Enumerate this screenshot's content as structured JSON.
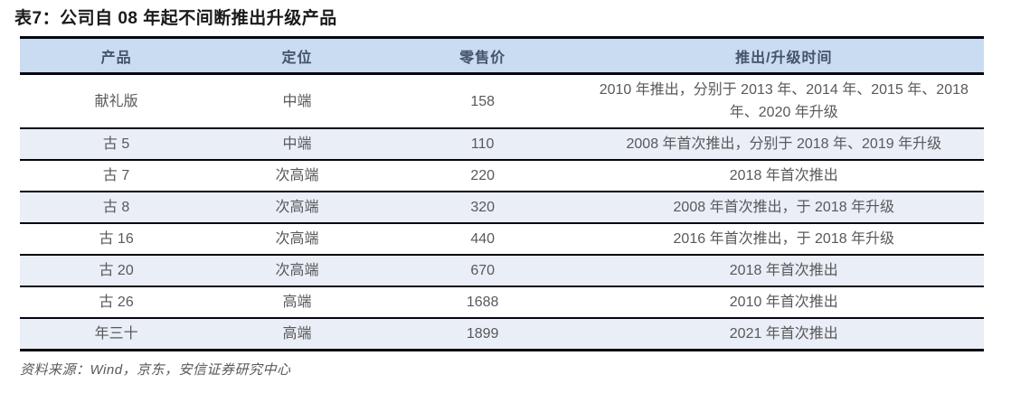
{
  "title": "表7：公司自 08 年起不间断推出升级产品",
  "colors": {
    "header_bg": "#c9dcf1",
    "row_alt_bg": "#e9eef7",
    "border": "#050510",
    "header_text": "#44546a",
    "cell_text": "#595959",
    "title_text": "#1a1a1a"
  },
  "table": {
    "headers": [
      "产品",
      "定位",
      "零售价",
      "推出/升级时间"
    ],
    "rows": [
      {
        "product": "献礼版",
        "position": "中端",
        "price": "158",
        "time": "2010 年推出，分别于 2013 年、2014 年、2015 年、2018 年、2020 年升级"
      },
      {
        "product": "古 5",
        "position": "中端",
        "price": "110",
        "time": "2008 年首次推出，分别于 2018 年、2019 年升级"
      },
      {
        "product": "古 7",
        "position": "次高端",
        "price": "220",
        "time": "2018 年首次推出"
      },
      {
        "product": "古 8",
        "position": "次高端",
        "price": "320",
        "time": "2008 年首次推出，于 2018 年升级"
      },
      {
        "product": "古 16",
        "position": "次高端",
        "price": "440",
        "time": "2016 年首次推出，于 2018 年升级"
      },
      {
        "product": "古 20",
        "position": "次高端",
        "price": "670",
        "time": "2018 年首次推出"
      },
      {
        "product": "古 26",
        "position": "高端",
        "price": "1688",
        "time": "2010 年首次推出"
      },
      {
        "product": "年三十",
        "position": "高端",
        "price": "1899",
        "time": "2021 年首次推出"
      }
    ]
  },
  "footer": {
    "source": "资料来源：Wind，京东，安信证券研究中心"
  }
}
